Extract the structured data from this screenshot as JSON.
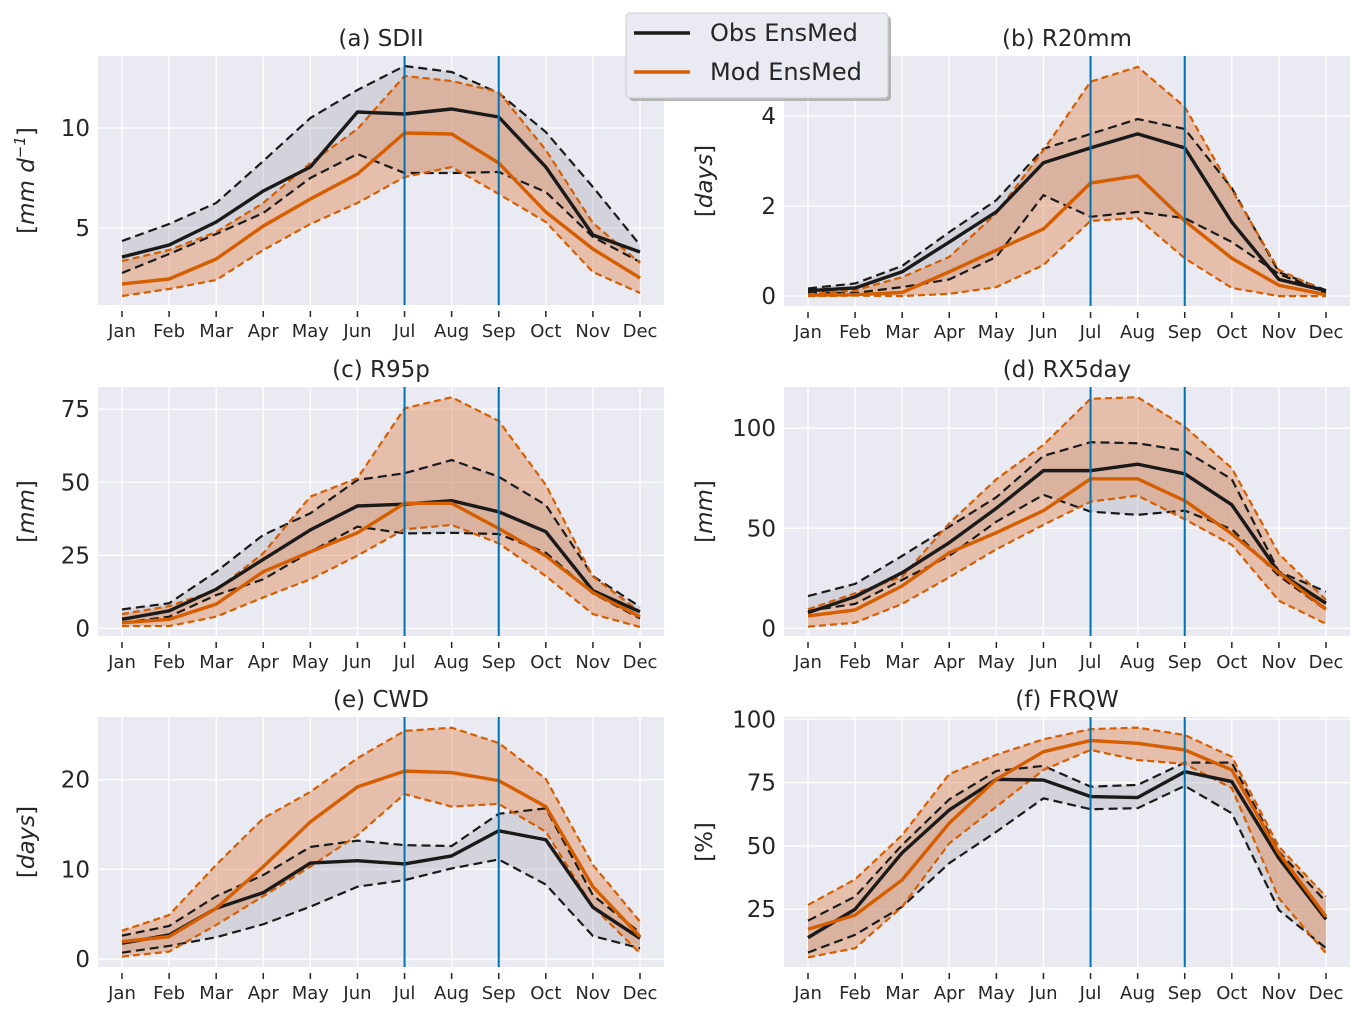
{
  "legend": {
    "entries": [
      {
        "label": "Obs EnsMed",
        "color": "#1a1a1a"
      },
      {
        "label": "Mod EnsMed",
        "color": "#d55e00"
      }
    ],
    "placement": "top-center"
  },
  "colors": {
    "obs": "#1a1a1a",
    "obs_fill": "#a9a9b4",
    "mod": "#d55e00",
    "mod_fill": "#e08a56",
    "vline": "#0072b2",
    "axes_bg": "#eaeaf2",
    "grid": "#ffffff"
  },
  "chart_data": [
    {
      "type": "line",
      "title": "(a) SDII",
      "ylabel": "[mm d^-1]",
      "ylabel_parts": [
        "[",
        "mm d",
        "−1",
        "]"
      ],
      "categories": [
        "Jan",
        "Feb",
        "Mar",
        "Apr",
        "May",
        "Jun",
        "Jul",
        "Aug",
        "Sep",
        "Oct",
        "Nov",
        "Dec"
      ],
      "ylim": [
        1.15,
        13.6
      ],
      "yticks": [
        5,
        10
      ],
      "vlines": [
        "Jul",
        "Sep"
      ],
      "grid": true,
      "series": [
        {
          "name": "Obs EnsMed",
          "median": [
            3.55,
            4.15,
            5.3,
            6.85,
            8.05,
            10.8,
            10.7,
            10.95,
            10.55,
            8.05,
            4.65,
            3.8
          ],
          "upper": [
            4.35,
            5.2,
            6.25,
            8.35,
            10.5,
            11.9,
            13.1,
            12.8,
            11.75,
            9.8,
            7.05,
            4.15
          ],
          "lower": [
            2.75,
            3.7,
            4.7,
            5.75,
            7.5,
            8.7,
            7.75,
            7.75,
            7.8,
            6.8,
            4.55,
            3.3
          ]
        },
        {
          "name": "Mod EnsMed",
          "median": [
            2.2,
            2.45,
            3.45,
            5.1,
            6.45,
            7.7,
            9.75,
            9.7,
            8.25,
            5.8,
            3.95,
            2.5
          ],
          "upper": [
            3.35,
            3.9,
            4.8,
            6.25,
            8.25,
            9.95,
            12.6,
            12.35,
            11.8,
            8.9,
            5.25,
            3.25
          ],
          "lower": [
            1.6,
            1.95,
            2.4,
            3.9,
            5.2,
            6.25,
            7.55,
            8.05,
            6.7,
            5.3,
            2.8,
            1.75
          ]
        }
      ]
    },
    {
      "type": "line",
      "title": "(b) R20mm",
      "ylabel": "[days]",
      "ylabel_parts": [
        "[",
        "days",
        "",
        "]"
      ],
      "categories": [
        "Jan",
        "Feb",
        "Mar",
        "Apr",
        "May",
        "Jun",
        "Jul",
        "Aug",
        "Sep",
        "Oct",
        "Nov",
        "Dec"
      ],
      "ylim": [
        -0.22,
        5.33
      ],
      "yticks": [
        0,
        2,
        4
      ],
      "vlines": [
        "Jul",
        "Sep"
      ],
      "grid": true,
      "series": [
        {
          "name": "Obs EnsMed",
          "median": [
            0.12,
            0.18,
            0.54,
            1.2,
            1.87,
            2.96,
            3.29,
            3.6,
            3.29,
            1.64,
            0.37,
            0.12
          ],
          "upper": [
            0.17,
            0.28,
            0.67,
            1.42,
            2.13,
            3.27,
            3.6,
            3.93,
            3.71,
            2.4,
            0.53,
            0.13
          ],
          "lower": [
            0.08,
            0.07,
            0.2,
            0.37,
            0.87,
            2.24,
            1.76,
            1.87,
            1.73,
            1.2,
            0.49,
            0.07
          ]
        },
        {
          "name": "Mod EnsMed",
          "median": [
            0.02,
            0.03,
            0.08,
            0.54,
            1.02,
            1.49,
            2.51,
            2.67,
            1.67,
            0.84,
            0.24,
            0.03
          ],
          "upper": [
            0.04,
            0.13,
            0.42,
            0.87,
            1.84,
            3.24,
            4.76,
            5.09,
            4.2,
            2.36,
            0.58,
            0.1
          ],
          "lower": [
            0.0,
            0.01,
            0.0,
            0.05,
            0.2,
            0.69,
            1.67,
            1.73,
            0.84,
            0.18,
            0.0,
            0.0
          ]
        }
      ]
    },
    {
      "type": "line",
      "title": "(c) R95p",
      "ylabel": "[mm]",
      "ylabel_parts": [
        "[",
        "mm",
        "",
        "]"
      ],
      "categories": [
        "Jan",
        "Feb",
        "Mar",
        "Apr",
        "May",
        "Jun",
        "Jul",
        "Aug",
        "Sep",
        "Oct",
        "Nov",
        "Dec"
      ],
      "ylim": [
        -2.6,
        82.6
      ],
      "yticks": [
        0,
        25,
        50,
        75
      ],
      "vlines": [
        "Jul",
        "Sep"
      ],
      "grid": true,
      "series": [
        {
          "name": "Obs EnsMed",
          "median": [
            3.1,
            6.0,
            13.4,
            23.6,
            33.7,
            41.9,
            42.5,
            43.7,
            39.9,
            33.1,
            12.9,
            5.7
          ],
          "upper": [
            6.5,
            8.6,
            19.4,
            32,
            39.4,
            50.8,
            53.1,
            57.6,
            51.9,
            42.2,
            17.9,
            7.4
          ],
          "lower": [
            1.9,
            4.0,
            11.4,
            16.8,
            26.2,
            34.8,
            32.5,
            32.7,
            32.3,
            25.9,
            12.0,
            3.4
          ]
        },
        {
          "name": "Mod EnsMed",
          "median": [
            1.9,
            3.1,
            8.3,
            19.4,
            26.2,
            32.7,
            42.8,
            42.8,
            34.2,
            24.8,
            12.3,
            4.0
          ],
          "upper": [
            4.9,
            7.6,
            13.1,
            25.7,
            45.1,
            51.4,
            75.3,
            79.1,
            71,
            49.1,
            17.7,
            5.7
          ],
          "lower": [
            0.8,
            0.8,
            4.0,
            10.6,
            16.8,
            24.9,
            33.9,
            35.4,
            29.1,
            17.9,
            4.9,
            0.5
          ]
        }
      ]
    },
    {
      "type": "line",
      "title": "(d) RX5day",
      "ylabel": "[mm]",
      "ylabel_parts": [
        "[",
        "mm",
        "",
        "]"
      ],
      "categories": [
        "Jan",
        "Feb",
        "Mar",
        "Apr",
        "May",
        "Jun",
        "Jul",
        "Aug",
        "Sep",
        "Oct",
        "Nov",
        "Dec"
      ],
      "ylim": [
        -3.85,
        120.6
      ],
      "yticks": [
        0,
        50,
        100
      ],
      "vlines": [
        "Jul",
        "Sep"
      ],
      "grid": true,
      "series": [
        {
          "name": "Obs EnsMed",
          "median": [
            7.8,
            15.8,
            27.8,
            42.8,
            60,
            78.8,
            78.8,
            82,
            77.2,
            61.7,
            27.8,
            12.5
          ],
          "upper": [
            16.1,
            22.2,
            36.2,
            50.8,
            65.5,
            86.2,
            93,
            92.5,
            88.7,
            74.5,
            28.3,
            18.3
          ],
          "lower": [
            8.7,
            12.2,
            24.2,
            36.2,
            53.3,
            66.7,
            58.3,
            56.7,
            58.8,
            49.5,
            26.2,
            9.2
          ]
        },
        {
          "name": "Mod EnsMed",
          "median": [
            6.2,
            9.2,
            21.2,
            37.8,
            47.8,
            58.8,
            74.7,
            74.7,
            63.8,
            47.2,
            27.8,
            9.5
          ],
          "upper": [
            9.5,
            17.5,
            25.8,
            52.5,
            74.5,
            91.7,
            114.7,
            115.5,
            100.8,
            80,
            37.2,
            14.2
          ],
          "lower": [
            0.8,
            2.8,
            12.2,
            25.5,
            39.5,
            51.7,
            63.3,
            66.3,
            54.5,
            41.7,
            13.8,
            2.2
          ]
        }
      ]
    },
    {
      "type": "line",
      "title": "(e) CWD",
      "ylabel": "[days]",
      "ylabel_parts": [
        "[",
        "days",
        "",
        "]"
      ],
      "categories": [
        "Jan",
        "Feb",
        "Mar",
        "Apr",
        "May",
        "Jun",
        "Jul",
        "Aug",
        "Sep",
        "Oct",
        "Nov",
        "Dec"
      ],
      "ylim": [
        -0.9,
        27
      ],
      "yticks": [
        0,
        10,
        20
      ],
      "vlines": [
        "Jul",
        "Sep"
      ],
      "grid": true,
      "series": [
        {
          "name": "Obs EnsMed",
          "median": [
            1.75,
            2.68,
            5.65,
            7.4,
            10.7,
            10.96,
            10.6,
            11.5,
            14.3,
            13.3,
            5.76,
            2.3
          ],
          "upper": [
            2.6,
            3.68,
            7.0,
            9.36,
            12.5,
            13.2,
            12.7,
            12.6,
            16.2,
            16.8,
            7.1,
            2.93
          ],
          "lower": [
            0.7,
            1.45,
            2.42,
            3.87,
            5.83,
            8.06,
            8.8,
            10.1,
            11.1,
            8.3,
            2.56,
            1.19
          ]
        },
        {
          "name": "Mod EnsMed",
          "median": [
            1.93,
            2.49,
            5.65,
            10.3,
            15.3,
            19.2,
            20.96,
            20.8,
            19.9,
            17.0,
            8.06,
            2.49
          ],
          "upper": [
            3.15,
            4.9,
            10.5,
            15.7,
            18.65,
            22.4,
            25.45,
            25.8,
            24.1,
            20.1,
            10.5,
            4.16
          ],
          "lower": [
            0.26,
            0.82,
            3.79,
            7.0,
            10.3,
            13.8,
            18.4,
            17.0,
            17.3,
            14.2,
            5.83,
            0.63
          ]
        }
      ]
    },
    {
      "type": "line",
      "title": "(f) FRQW",
      "ylabel": "[%]",
      "ylabel_parts": [
        "[",
        "%",
        "",
        "]"
      ],
      "ylabel_upright": true,
      "categories": [
        "Jan",
        "Feb",
        "Mar",
        "Apr",
        "May",
        "Jun",
        "Jul",
        "Aug",
        "Sep",
        "Oct",
        "Nov",
        "Dec"
      ],
      "ylim": [
        2.2,
        100.9
      ],
      "yticks": [
        25,
        50,
        75,
        100
      ],
      "vlines": [
        "Jul",
        "Sep"
      ],
      "grid": true,
      "series": [
        {
          "name": "Obs EnsMed",
          "median": [
            13.8,
            25,
            47.3,
            64.2,
            76.3,
            76,
            69.5,
            69.1,
            79.3,
            75.4,
            45.1,
            21
          ],
          "upper": [
            20.5,
            30,
            50.4,
            68.4,
            79.6,
            81.6,
            73.4,
            74.1,
            82.9,
            82.9,
            47.7,
            28
          ],
          "lower": [
            7.9,
            14.9,
            26,
            43.2,
            55.6,
            68.8,
            64.5,
            64.9,
            73.7,
            62.9,
            24.7,
            9.6
          ]
        },
        {
          "name": "Mod EnsMed",
          "median": [
            17.1,
            22.7,
            36.6,
            59,
            76.3,
            87.2,
            91.6,
            90.5,
            87.9,
            80,
            47.1,
            22.1
          ],
          "upper": [
            26.7,
            36.8,
            54.3,
            78.4,
            86,
            92.1,
            96.1,
            96.7,
            93.8,
            85.2,
            49.7,
            30
          ],
          "lower": [
            6.0,
            9.6,
            26,
            51,
            65.5,
            80,
            87.9,
            83.9,
            82.4,
            72.8,
            29.3,
            7.6
          ]
        }
      ]
    }
  ]
}
